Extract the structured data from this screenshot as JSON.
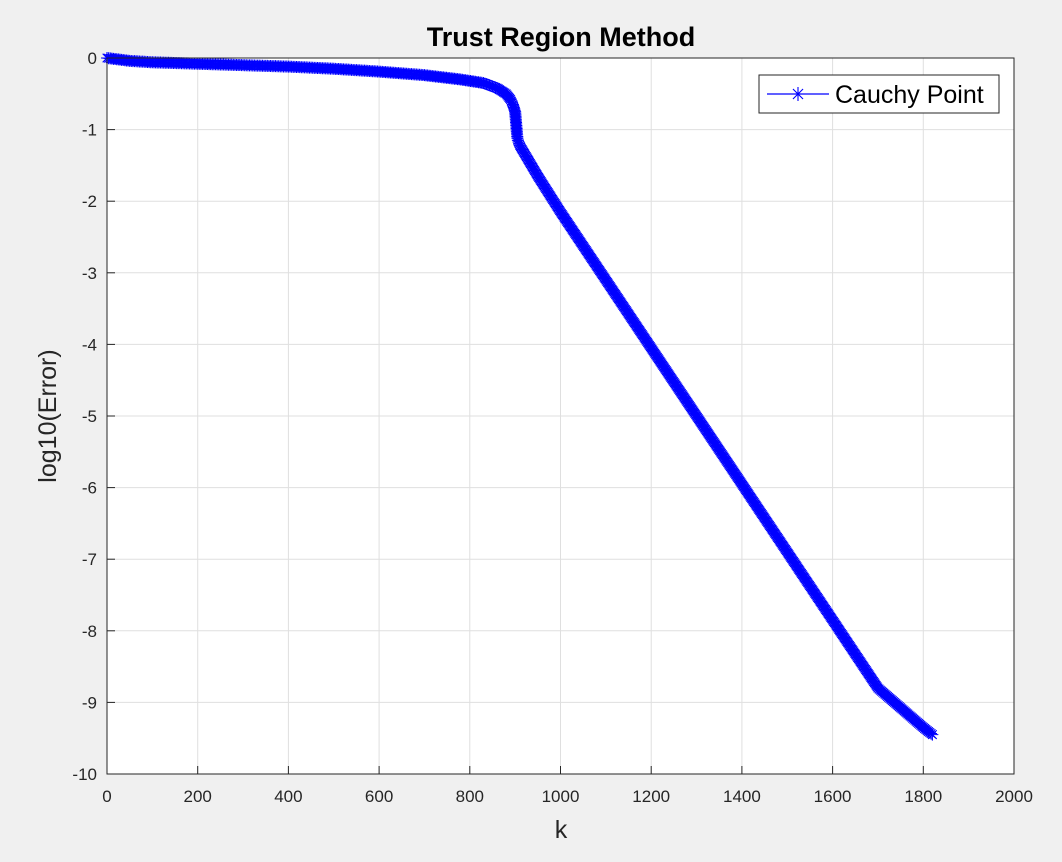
{
  "chart_data": {
    "type": "line",
    "title": "Trust Region Method",
    "xlabel": "k",
    "ylabel": "log10(Error)",
    "xlim": [
      0,
      2000
    ],
    "ylim": [
      -10,
      0
    ],
    "xticks": [
      "0",
      "200",
      "400",
      "600",
      "800",
      "1000",
      "1200",
      "1400",
      "1600",
      "1800",
      "2000"
    ],
    "yticks": [
      "0",
      "-1",
      "-2",
      "-3",
      "-4",
      "-5",
      "-6",
      "-7",
      "-8",
      "-9",
      "-10"
    ],
    "grid": true,
    "legend_position": "top-right",
    "series": [
      {
        "name": "Cauchy Point",
        "color": "#0000ff",
        "marker": "asterisk",
        "x": [
          0,
          50,
          100,
          200,
          300,
          400,
          500,
          600,
          700,
          780,
          830,
          860,
          880,
          890,
          895,
          900,
          902,
          904,
          905,
          906,
          910,
          950,
          1000,
          1100,
          1200,
          1300,
          1400,
          1500,
          1600,
          1700,
          1800,
          1820
        ],
        "y": [
          0,
          -0.04,
          -0.06,
          -0.08,
          -0.1,
          -0.12,
          -0.15,
          -0.19,
          -0.24,
          -0.3,
          -0.35,
          -0.42,
          -0.5,
          -0.58,
          -0.65,
          -0.75,
          -0.9,
          -1.05,
          -1.12,
          -1.15,
          -1.22,
          -1.65,
          -2.15,
          -3.1,
          -4.05,
          -5.0,
          -5.95,
          -6.9,
          -7.85,
          -8.8,
          -9.35,
          -9.45
        ]
      }
    ]
  }
}
